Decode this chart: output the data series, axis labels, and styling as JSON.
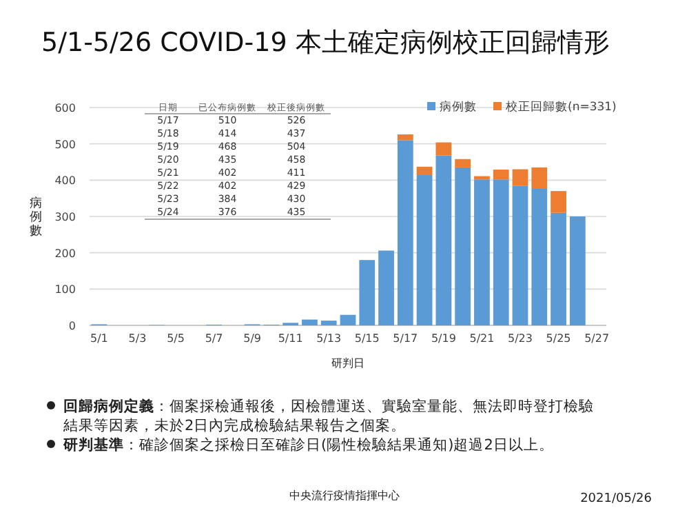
{
  "chart_data": {
    "type": "bar",
    "stacked": true,
    "title": "5/1-5/26 COVID-19 本土確定病例校正回歸情形",
    "xlabel": "研判日",
    "ylabel": "病例數",
    "categories": [
      "5/1",
      null,
      "5/3",
      null,
      "5/5",
      null,
      "5/7",
      null,
      "5/9",
      null,
      "5/11",
      null,
      "5/13",
      null,
      "5/15",
      null,
      "5/17",
      null,
      "5/19",
      null,
      "5/21",
      null,
      "5/23",
      null,
      "5/25",
      null,
      "5/27"
    ],
    "series": [
      {
        "name": "病例數",
        "color": "#5b9bd5",
        "values": [
          3,
          0,
          0,
          1,
          0,
          0,
          2,
          0,
          3,
          2,
          7,
          16,
          13,
          29,
          180,
          206,
          510,
          414,
          468,
          435,
          402,
          402,
          384,
          376,
          310,
          300,
          null
        ]
      },
      {
        "name": "校正回歸數(n=331)",
        "color": "#ed7d31",
        "values": [
          null,
          null,
          null,
          null,
          null,
          null,
          null,
          null,
          null,
          null,
          null,
          null,
          null,
          null,
          null,
          null,
          16,
          23,
          36,
          23,
          9,
          27,
          46,
          59,
          60,
          null,
          null
        ]
      }
    ],
    "ylim": [
      0,
      600
    ],
    "yticks": [
      0,
      100,
      200,
      300,
      400,
      500,
      600
    ],
    "grid": "y",
    "legend": "top right",
    "annotations": [
      "日期 已公布病例數 校正後病例數",
      "5/17 510 526",
      "5/18 414 437",
      "5/19 468 504",
      "5/20 435 458",
      "5/21 402 411",
      "5/22 402 429",
      "5/23 384 430",
      "5/24 376 435",
      "**回歸病例定義**：個案採檢通報後，因檢體運送、實驗室量能、無法即時登打檢驗結果等因素，未於2日內完成檢驗結果報告之個案。",
      "**研判基準**：確診個案之採檢日至確診日(陽性檢驗結果通知)超過2日以上。",
      "中央流行疫情指揮中心",
      "2021/05/26"
    ]
  }
}
